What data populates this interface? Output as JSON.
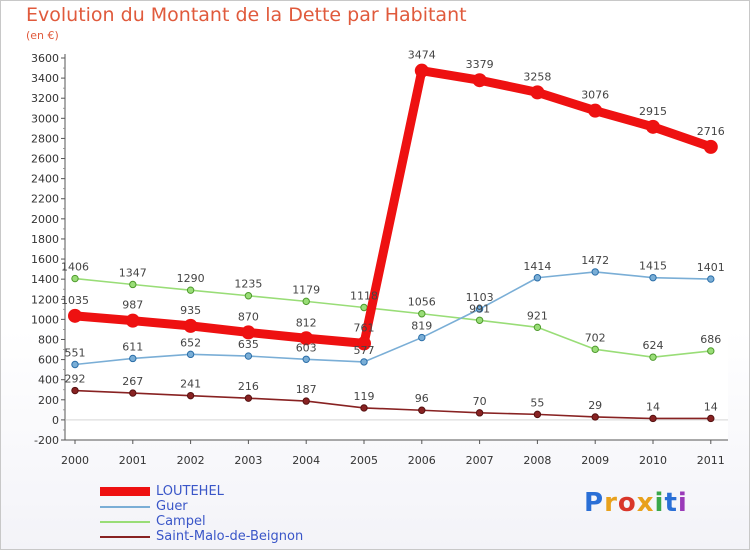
{
  "title": "Evolution du Montant de la Dette par Habitant",
  "subtitle": "(en €)",
  "logo": {
    "text": "Proxiti",
    "colors": [
      "#2a6fd6",
      "#e8a11c",
      "#d9362a",
      "#e8a11c",
      "#3aa84a",
      "#2a6fd6",
      "#9a3ab8"
    ]
  },
  "chart_data": {
    "type": "line",
    "title": "Evolution du Montant de la Dette par Habitant",
    "subtitle": "(en €)",
    "xlabel": "",
    "ylabel": "",
    "x": [
      "2000",
      "2001",
      "2002",
      "2003",
      "2004",
      "2005",
      "2006",
      "2007",
      "2008",
      "2009",
      "2010",
      "2011"
    ],
    "ylim": [
      -200,
      3600
    ],
    "yticks": [
      -200,
      0,
      200,
      400,
      600,
      800,
      1000,
      1200,
      1400,
      1600,
      1800,
      2000,
      2200,
      2400,
      2600,
      2800,
      3000,
      3200,
      3400,
      3600
    ],
    "grid": false,
    "legend": "bottom-left",
    "series": [
      {
        "name": "LOUTEHEL",
        "color": "#ee1111",
        "marker_stroke": "#ee1111",
        "width": 9,
        "marker": 6.5,
        "values": [
          1035,
          987,
          935,
          870,
          812,
          761,
          3474,
          3379,
          3258,
          3076,
          2915,
          2716
        ]
      },
      {
        "name": "Guer",
        "color": "#7aaed6",
        "marker_stroke": "#2b6ea8",
        "width": 1.6,
        "marker": 3.2,
        "values": [
          551,
          611,
          652,
          635,
          603,
          577,
          819,
          1103,
          1414,
          1472,
          1415,
          1401
        ]
      },
      {
        "name": "Campel",
        "color": "#99dd77",
        "marker_stroke": "#4e9a2c",
        "width": 1.6,
        "marker": 3.2,
        "values": [
          1406,
          1347,
          1290,
          1235,
          1179,
          1118,
          1056,
          991,
          921,
          702,
          624,
          686
        ]
      },
      {
        "name": "Saint-Malo-de-Beignon",
        "color": "#882222",
        "marker_stroke": "#551111",
        "width": 1.6,
        "marker": 3.2,
        "values": [
          292,
          267,
          241,
          216,
          187,
          119,
          96,
          70,
          55,
          29,
          14,
          14
        ]
      }
    ]
  }
}
